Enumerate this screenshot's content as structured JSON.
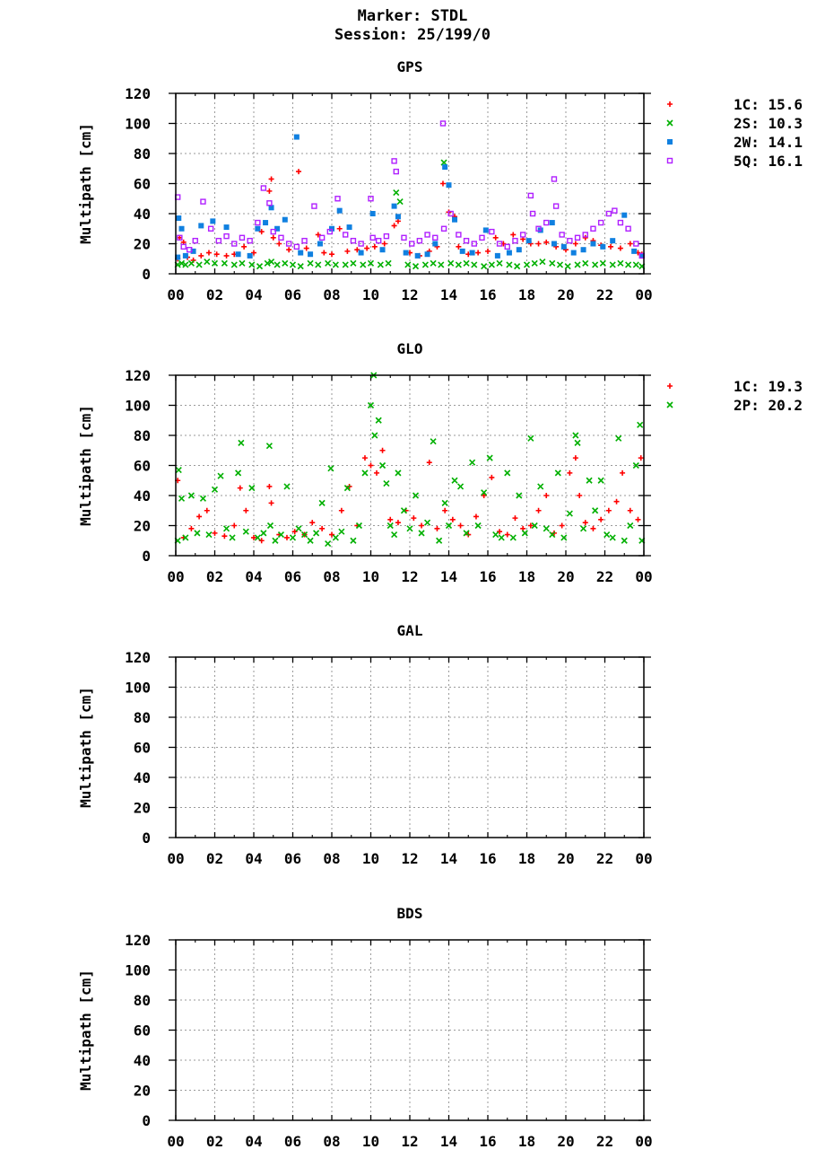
{
  "header": {
    "marker": "Marker: STDL",
    "session": "Session: 25/199/0"
  },
  "colors": {
    "1C": "#ff0000",
    "2S": "#00b000",
    "2P": "#00b000",
    "2W": "#1080e0",
    "5Q": "#b020ff",
    "grid": "#9a9a9a",
    "axis": "#000000"
  },
  "chart_data": [
    {
      "type": "scatter",
      "title": "GPS",
      "ylabel": "Multipath [cm]",
      "xlabel": "",
      "xlim": [
        0,
        24
      ],
      "ylim": [
        0,
        120
      ],
      "xticks": [
        "00",
        "02",
        "04",
        "06",
        "08",
        "10",
        "12",
        "14",
        "16",
        "18",
        "20",
        "22",
        "00"
      ],
      "yticks": [
        "0",
        "20",
        "40",
        "60",
        "80",
        "100",
        "120"
      ],
      "grid": true,
      "legend_position": "right",
      "series": [
        {
          "name": "1C",
          "rms": "15.6",
          "marker": "plus",
          "color": "#ff0000",
          "x": [
            0.1,
            0.2,
            0.4,
            0.6,
            0.9,
            1.3,
            1.7,
            2.1,
            2.6,
            3.0,
            3.5,
            4.0,
            4.4,
            4.8,
            4.9,
            5.0,
            5.3,
            5.8,
            6.3,
            6.7,
            7.3,
            7.6,
            8.0,
            8.4,
            8.8,
            9.3,
            9.8,
            10.2,
            10.7,
            11.2,
            11.4,
            12.0,
            12.5,
            13.0,
            13.4,
            13.7,
            14.0,
            14.3,
            14.5,
            15.0,
            15.5,
            16.0,
            16.4,
            16.8,
            17.3,
            17.8,
            18.2,
            18.6,
            19.0,
            19.5,
            20.0,
            20.5,
            21.0,
            21.4,
            21.8,
            22.3,
            22.8,
            23.3,
            23.7,
            23.9
          ],
          "y": [
            10,
            24,
            21,
            11,
            9,
            12,
            14,
            13,
            12,
            13,
            18,
            14,
            28,
            55,
            63,
            24,
            20,
            16,
            68,
            17,
            26,
            14,
            13,
            30,
            15,
            16,
            17,
            18,
            20,
            32,
            35,
            14,
            12,
            15,
            18,
            60,
            41,
            38,
            18,
            13,
            14,
            15,
            24,
            20,
            26,
            23,
            20,
            20,
            21,
            18,
            16,
            20,
            24,
            22,
            19,
            18,
            17,
            20,
            14,
            13
          ]
        },
        {
          "name": "2S",
          "rms": "10.3",
          "marker": "cross",
          "color": "#00b000",
          "x": [
            0.1,
            0.3,
            0.5,
            0.8,
            1.2,
            1.6,
            2.0,
            2.5,
            3.0,
            3.4,
            3.9,
            4.3,
            4.7,
            4.9,
            5.2,
            5.6,
            6.0,
            6.4,
            6.9,
            7.3,
            7.8,
            8.2,
            8.7,
            9.1,
            9.6,
            10.0,
            10.5,
            10.9,
            11.3,
            11.5,
            11.9,
            12.3,
            12.8,
            13.2,
            13.6,
            13.75,
            14.1,
            14.5,
            14.9,
            15.3,
            15.8,
            16.2,
            16.6,
            17.1,
            17.5,
            18.0,
            18.4,
            18.8,
            19.3,
            19.7,
            20.1,
            20.6,
            21.0,
            21.5,
            21.9,
            22.4,
            22.8,
            23.2,
            23.6,
            23.9
          ],
          "y": [
            6,
            7,
            6,
            7,
            6,
            8,
            7,
            7,
            6,
            7,
            6,
            5,
            7,
            8,
            6,
            7,
            6,
            5,
            7,
            6,
            7,
            6,
            6,
            7,
            6,
            7,
            6,
            7,
            54,
            48,
            6,
            5,
            6,
            7,
            6,
            74,
            7,
            6,
            7,
            6,
            5,
            6,
            7,
            6,
            5,
            6,
            7,
            8,
            7,
            6,
            5,
            6,
            7,
            6,
            7,
            6,
            7,
            6,
            6,
            5
          ]
        },
        {
          "name": "2W",
          "rms": "14.1",
          "marker": "square",
          "color": "#1080e0",
          "x": [
            0.1,
            0.15,
            0.3,
            0.5,
            0.9,
            1.3,
            1.9,
            2.6,
            3.2,
            3.8,
            4.2,
            4.6,
            4.9,
            5.2,
            5.6,
            6.2,
            6.4,
            6.9,
            7.4,
            8.0,
            8.4,
            8.9,
            9.5,
            10.1,
            10.6,
            11.2,
            11.4,
            11.8,
            12.4,
            12.9,
            13.3,
            13.8,
            14.0,
            14.3,
            14.7,
            15.2,
            15.9,
            16.5,
            17.1,
            17.6,
            18.1,
            18.7,
            19.3,
            19.4,
            19.9,
            20.4,
            20.9,
            21.4,
            21.9,
            22.4,
            23.0,
            23.5,
            23.9
          ],
          "y": [
            11,
            37,
            30,
            12,
            15,
            32,
            35,
            31,
            13,
            12,
            30,
            34,
            44,
            30,
            36,
            91,
            14,
            13,
            20,
            30,
            42,
            31,
            14,
            40,
            16,
            45,
            38,
            14,
            12,
            13,
            20,
            71,
            59,
            36,
            15,
            14,
            29,
            12,
            14,
            16,
            22,
            29,
            34,
            20,
            18,
            14,
            16,
            20,
            18,
            22,
            39,
            15,
            12
          ]
        },
        {
          "name": "5Q",
          "rms": "16.1",
          "marker": "opensquare",
          "color": "#b020ff",
          "x": [
            0.1,
            0.2,
            0.4,
            0.7,
            1.0,
            1.4,
            1.8,
            2.2,
            2.6,
            3.0,
            3.4,
            3.8,
            4.2,
            4.5,
            4.8,
            5.0,
            5.4,
            5.8,
            6.2,
            6.6,
            7.1,
            7.5,
            7.9,
            8.3,
            8.7,
            9.1,
            9.5,
            10.0,
            10.1,
            10.4,
            10.8,
            11.2,
            11.3,
            11.7,
            12.1,
            12.5,
            12.9,
            13.3,
            13.7,
            13.75,
            14.1,
            14.5,
            14.9,
            15.3,
            15.7,
            16.2,
            16.6,
            17.0,
            17.4,
            17.8,
            18.2,
            18.3,
            18.6,
            19.0,
            19.4,
            19.5,
            19.8,
            20.2,
            20.6,
            21.0,
            21.4,
            21.8,
            22.2,
            22.5,
            22.8,
            23.2,
            23.6,
            23.9
          ],
          "y": [
            51,
            24,
            18,
            16,
            22,
            48,
            30,
            22,
            25,
            20,
            24,
            22,
            34,
            57,
            47,
            28,
            24,
            20,
            18,
            22,
            45,
            24,
            28,
            50,
            26,
            22,
            20,
            50,
            24,
            22,
            25,
            75,
            68,
            24,
            20,
            22,
            26,
            24,
            100,
            30,
            40,
            26,
            22,
            20,
            24,
            28,
            20,
            18,
            22,
            26,
            52,
            40,
            30,
            34,
            63,
            45,
            26,
            22,
            24,
            26,
            30,
            34,
            40,
            42,
            34,
            30,
            20,
            12
          ]
        }
      ]
    },
    {
      "type": "scatter",
      "title": "GLO",
      "ylabel": "Multipath [cm]",
      "xlabel": "",
      "xlim": [
        0,
        24
      ],
      "ylim": [
        0,
        120
      ],
      "xticks": [
        "00",
        "02",
        "04",
        "06",
        "08",
        "10",
        "12",
        "14",
        "16",
        "18",
        "20",
        "22",
        "00"
      ],
      "yticks": [
        "0",
        "20",
        "40",
        "60",
        "80",
        "100",
        "120"
      ],
      "grid": true,
      "legend_position": "right",
      "series": [
        {
          "name": "1C",
          "rms": "19.3",
          "marker": "plus",
          "color": "#ff0000",
          "x": [
            0.1,
            0.4,
            0.8,
            1.2,
            1.6,
            2.0,
            2.5,
            3.0,
            3.3,
            3.6,
            4.0,
            4.4,
            4.8,
            4.9,
            5.3,
            5.7,
            6.1,
            6.6,
            7.0,
            7.5,
            8.0,
            8.5,
            8.9,
            9.3,
            9.7,
            10.0,
            10.3,
            10.6,
            11.0,
            11.4,
            11.8,
            12.2,
            12.6,
            13.0,
            13.4,
            13.8,
            14.2,
            14.6,
            15.0,
            15.4,
            15.8,
            16.2,
            16.6,
            17.0,
            17.4,
            17.8,
            18.2,
            18.6,
            19.0,
            19.4,
            19.8,
            20.2,
            20.5,
            20.7,
            21.0,
            21.4,
            21.8,
            22.2,
            22.6,
            22.9,
            23.3,
            23.7,
            23.85
          ],
          "y": [
            50,
            12,
            18,
            26,
            30,
            15,
            13,
            20,
            45,
            30,
            12,
            10,
            46,
            35,
            14,
            12,
            16,
            14,
            22,
            18,
            14,
            30,
            46,
            20,
            65,
            60,
            55,
            70,
            24,
            22,
            30,
            25,
            20,
            62,
            18,
            30,
            24,
            20,
            14,
            26,
            40,
            52,
            16,
            14,
            25,
            18,
            20,
            30,
            40,
            15,
            20,
            55,
            65,
            40,
            22,
            18,
            24,
            30,
            36,
            55,
            30,
            24,
            65
          ]
        },
        {
          "name": "2P",
          "rms": "20.2",
          "marker": "cross",
          "color": "#00b000",
          "x": [
            0.1,
            0.15,
            0.3,
            0.5,
            0.8,
            1.1,
            1.4,
            1.7,
            2.0,
            2.3,
            2.6,
            2.9,
            3.2,
            3.35,
            3.6,
            3.9,
            4.2,
            4.5,
            4.8,
            4.85,
            5.1,
            5.4,
            5.7,
            6.0,
            6.3,
            6.6,
            6.9,
            7.2,
            7.5,
            7.8,
            7.95,
            8.2,
            8.5,
            8.8,
            9.1,
            9.4,
            9.7,
            10.0,
            10.15,
            10.2,
            10.4,
            10.6,
            10.8,
            11.0,
            11.2,
            11.4,
            11.7,
            12.0,
            12.3,
            12.6,
            12.9,
            13.2,
            13.5,
            13.8,
            14.0,
            14.3,
            14.6,
            14.9,
            15.2,
            15.5,
            15.8,
            16.1,
            16.4,
            16.7,
            17.0,
            17.3,
            17.6,
            17.9,
            18.2,
            18.4,
            18.7,
            19.0,
            19.3,
            19.6,
            19.9,
            20.2,
            20.5,
            20.6,
            20.9,
            21.2,
            21.5,
            21.8,
            22.1,
            22.4,
            22.7,
            23.0,
            23.3,
            23.6,
            23.8,
            23.9
          ],
          "y": [
            10,
            57,
            38,
            12,
            40,
            15,
            38,
            14,
            44,
            53,
            18,
            12,
            55,
            75,
            16,
            45,
            12,
            15,
            73,
            20,
            10,
            14,
            46,
            12,
            18,
            14,
            10,
            15,
            35,
            8,
            58,
            12,
            16,
            45,
            10,
            20,
            55,
            100,
            120,
            80,
            90,
            60,
            48,
            20,
            14,
            55,
            30,
            18,
            40,
            15,
            22,
            76,
            10,
            35,
            20,
            50,
            46,
            15,
            62,
            20,
            42,
            65,
            14,
            12,
            55,
            12,
            40,
            15,
            78,
            20,
            46,
            18,
            14,
            55,
            12,
            28,
            80,
            75,
            18,
            50,
            30,
            50,
            14,
            12,
            78,
            10,
            20,
            60,
            87,
            10
          ]
        }
      ]
    },
    {
      "type": "scatter",
      "title": "GAL",
      "ylabel": "Multipath [cm]",
      "xlabel": "",
      "xlim": [
        0,
        24
      ],
      "ylim": [
        0,
        120
      ],
      "xticks": [
        "00",
        "02",
        "04",
        "06",
        "08",
        "10",
        "12",
        "14",
        "16",
        "18",
        "20",
        "22",
        "00"
      ],
      "yticks": [
        "0",
        "20",
        "40",
        "60",
        "80",
        "100",
        "120"
      ],
      "grid": true,
      "series": []
    },
    {
      "type": "scatter",
      "title": "BDS",
      "ylabel": "Multipath [cm]",
      "xlabel": "",
      "xlim": [
        0,
        24
      ],
      "ylim": [
        0,
        120
      ],
      "xticks": [
        "00",
        "02",
        "04",
        "06",
        "08",
        "10",
        "12",
        "14",
        "16",
        "18",
        "20",
        "22",
        "00"
      ],
      "yticks": [
        "0",
        "20",
        "40",
        "60",
        "80",
        "100",
        "120"
      ],
      "grid": true,
      "series": []
    }
  ]
}
